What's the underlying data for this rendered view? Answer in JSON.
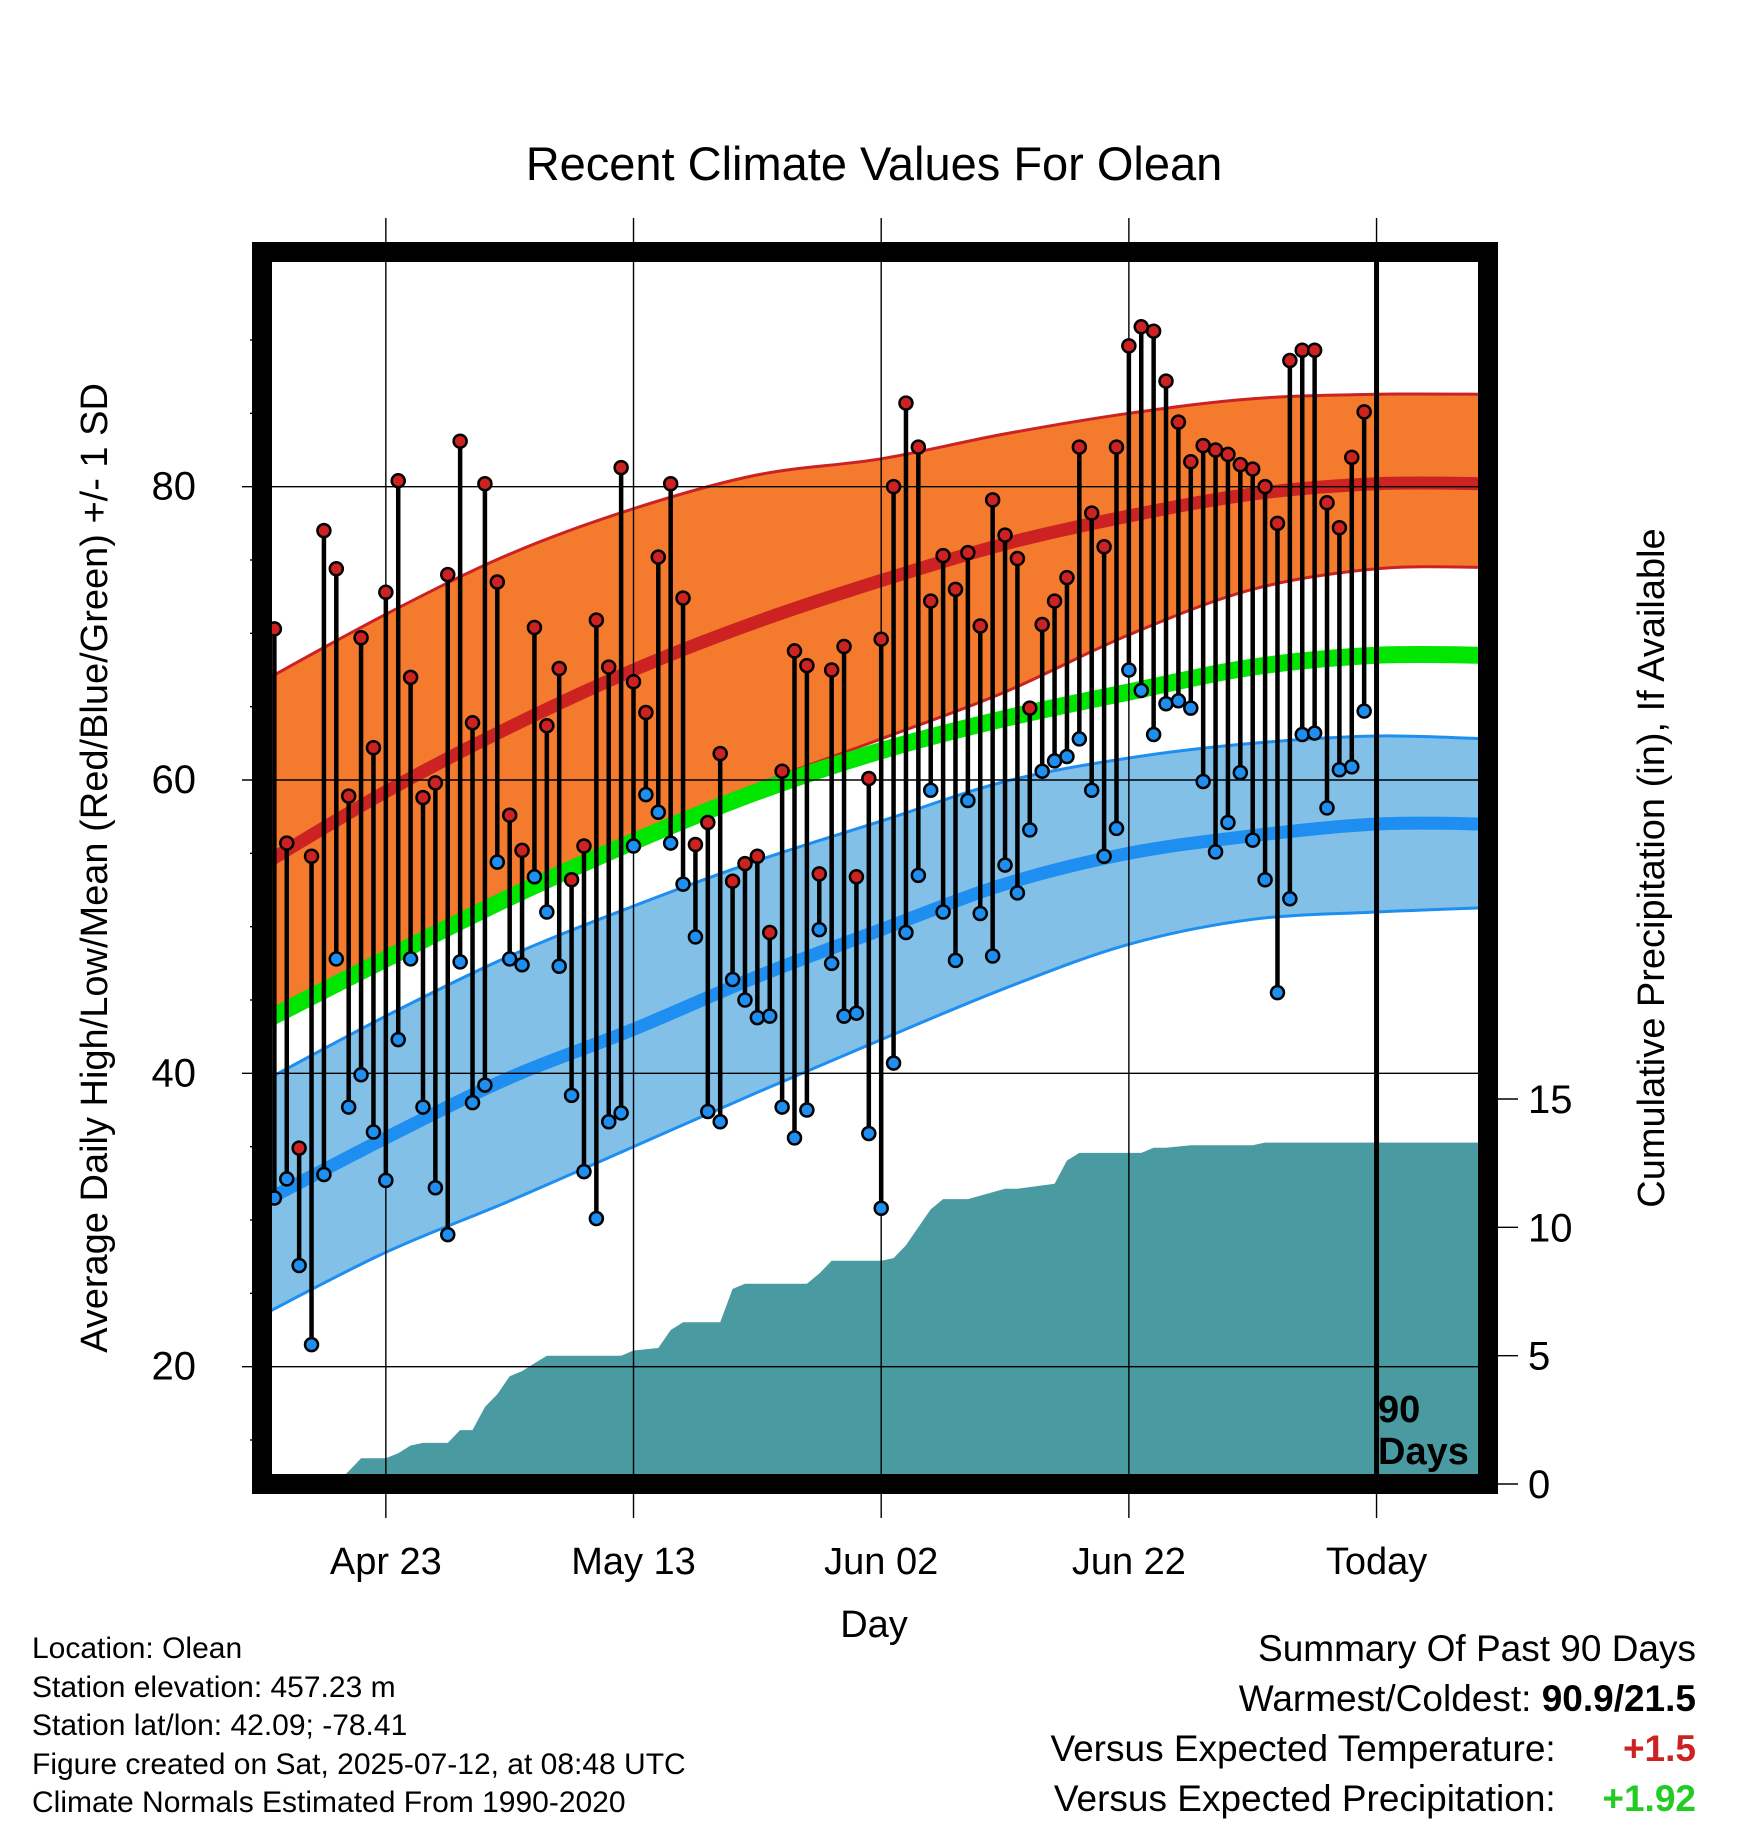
{
  "chart_data": {
    "type": "line",
    "title": "Recent Climate Values For Olean",
    "xlabel": "Day",
    "ylabel": "Average Daily High/Low/Mean (Red/Blue/Green) +/- 1 SD",
    "y2label": "Cumulative Precipitation (in), If Available",
    "x_range": [
      "2025-04-13",
      "2025-07-21"
    ],
    "ylim": [
      12,
      96
    ],
    "y2lim": [
      0,
      48
    ],
    "grid": true,
    "x_ticks": [
      {
        "date": "2025-04-23",
        "label": "Apr 23"
      },
      {
        "date": "2025-05-13",
        "label": "May 13"
      },
      {
        "date": "2025-06-02",
        "label": "Jun 02"
      },
      {
        "date": "2025-06-22",
        "label": "Jun 22"
      },
      {
        "date": "2025-07-12",
        "label": "Today"
      }
    ],
    "y_ticks": [
      20,
      40,
      60,
      80
    ],
    "y2_ticks": [
      0,
      5,
      10,
      15
    ],
    "today_marker": {
      "date": "2025-07-12",
      "label_line1": "90",
      "label_line2": "Days"
    },
    "normals": {
      "dates": [
        "2025-04-13",
        "2025-04-23",
        "2025-05-03",
        "2025-05-13",
        "2025-05-23",
        "2025-06-02",
        "2025-06-12",
        "2025-06-22",
        "2025-07-02",
        "2025-07-12",
        "2025-07-21"
      ],
      "high_mean": [
        54.2,
        59.2,
        63.6,
        67.5,
        70.8,
        73.6,
        76.1,
        78.0,
        79.5,
        80.2,
        80.2
      ],
      "high_upper": [
        66.7,
        71.3,
        75.4,
        78.5,
        80.8,
        81.9,
        83.6,
        85.0,
        86.0,
        86.3,
        86.3
      ],
      "high_lower": [
        44.0,
        48.3,
        52.5,
        56.2,
        59.7,
        62.8,
        66.0,
        69.9,
        73.0,
        74.4,
        74.5
      ],
      "mean": [
        43.5,
        47.8,
        52.0,
        55.8,
        59.2,
        62.0,
        64.2,
        66.0,
        67.7,
        68.5,
        68.5
      ],
      "low_mean": [
        31.2,
        35.6,
        39.7,
        43.0,
        46.6,
        49.8,
        52.9,
        55.0,
        56.2,
        57.0,
        57.0
      ],
      "low_upper": [
        39.4,
        43.9,
        48.0,
        51.4,
        54.5,
        57.2,
        59.9,
        61.5,
        62.5,
        63.0,
        62.8
      ],
      "low_lower": [
        23.5,
        27.8,
        31.3,
        35.0,
        38.7,
        42.3,
        45.8,
        48.8,
        50.5,
        51.0,
        51.3
      ],
      "colors": {
        "high_band": "#f47a2e",
        "high_line": "#cc2222",
        "low_band": "#82c0e8",
        "low_line": "#1e8ff0",
        "mean_line": "#00e600"
      }
    },
    "observed": {
      "dates": [
        "2025-04-13",
        "2025-04-14",
        "2025-04-15",
        "2025-04-16",
        "2025-04-17",
        "2025-04-18",
        "2025-04-19",
        "2025-04-20",
        "2025-04-21",
        "2025-04-22",
        "2025-04-23",
        "2025-04-24",
        "2025-04-25",
        "2025-04-26",
        "2025-04-27",
        "2025-04-28",
        "2025-04-29",
        "2025-04-30",
        "2025-05-01",
        "2025-05-02",
        "2025-05-03",
        "2025-05-04",
        "2025-05-05",
        "2025-05-06",
        "2025-05-07",
        "2025-05-08",
        "2025-05-09",
        "2025-05-10",
        "2025-05-11",
        "2025-05-12",
        "2025-05-13",
        "2025-05-14",
        "2025-05-15",
        "2025-05-16",
        "2025-05-17",
        "2025-05-18",
        "2025-05-19",
        "2025-05-20",
        "2025-05-21",
        "2025-05-22",
        "2025-05-23",
        "2025-05-24",
        "2025-05-25",
        "2025-05-26",
        "2025-05-27",
        "2025-05-28",
        "2025-05-29",
        "2025-05-30",
        "2025-05-31",
        "2025-06-01",
        "2025-06-02",
        "2025-06-03",
        "2025-06-04",
        "2025-06-05",
        "2025-06-06",
        "2025-06-07",
        "2025-06-08",
        "2025-06-09",
        "2025-06-10",
        "2025-06-11",
        "2025-06-12",
        "2025-06-13",
        "2025-06-14",
        "2025-06-15",
        "2025-06-16",
        "2025-06-17",
        "2025-06-18",
        "2025-06-19",
        "2025-06-20",
        "2025-06-21",
        "2025-06-22",
        "2025-06-23",
        "2025-06-24",
        "2025-06-25",
        "2025-06-26",
        "2025-06-27",
        "2025-06-28",
        "2025-06-29",
        "2025-06-30",
        "2025-07-01",
        "2025-07-02",
        "2025-07-03",
        "2025-07-04",
        "2025-07-05",
        "2025-07-06",
        "2025-07-07",
        "2025-07-08",
        "2025-07-09",
        "2025-07-10",
        "2025-07-11"
      ],
      "highs": [
        57.6,
        70.3,
        55.7,
        34.9,
        54.8,
        77.0,
        74.4,
        58.9,
        69.7,
        62.2,
        72.8,
        80.4,
        67.0,
        58.8,
        59.8,
        74.0,
        83.1,
        63.9,
        80.2,
        73.5,
        57.6,
        55.2,
        70.4,
        63.7,
        67.6,
        53.2,
        55.5,
        70.9,
        67.7,
        81.3,
        66.7,
        64.6,
        75.2,
        80.2,
        72.4,
        55.6,
        57.1,
        61.8,
        53.1,
        54.3,
        54.8,
        49.6,
        60.6,
        68.8,
        67.8,
        53.6,
        67.5,
        69.1,
        53.4,
        60.1,
        69.6,
        80.0,
        85.7,
        82.7,
        72.2,
        75.3,
        73.0,
        75.5,
        70.5,
        79.1,
        76.7,
        75.1,
        64.9,
        70.6,
        72.2,
        73.8,
        82.7,
        78.2,
        75.9,
        82.7,
        89.6,
        90.9,
        90.6,
        87.2,
        84.4,
        81.7,
        82.8,
        82.5,
        82.2,
        81.5,
        81.2,
        80.0,
        77.5,
        88.6,
        89.3,
        89.3,
        78.9,
        77.2,
        82.0,
        85.1
      ],
      "lows": [
        31.7,
        31.5,
        32.8,
        26.9,
        21.5,
        33.1,
        47.8,
        37.7,
        39.9,
        36.0,
        32.7,
        42.3,
        47.8,
        37.7,
        32.2,
        29.0,
        47.6,
        38.0,
        39.2,
        54.4,
        47.8,
        47.4,
        53.4,
        51.0,
        47.3,
        38.5,
        33.3,
        30.1,
        36.7,
        37.3,
        55.5,
        59.0,
        57.8,
        55.7,
        52.9,
        49.3,
        37.4,
        36.7,
        46.4,
        45.0,
        43.8,
        43.9,
        37.7,
        35.6,
        37.5,
        49.8,
        47.5,
        43.9,
        44.1,
        35.9,
        30.8,
        40.7,
        49.6,
        53.5,
        59.3,
        51.0,
        47.7,
        58.6,
        50.9,
        48.0,
        54.2,
        52.3,
        56.6,
        60.6,
        61.3,
        61.6,
        62.8,
        59.3,
        54.8,
        56.7,
        67.5,
        66.1,
        63.1,
        65.2,
        65.4,
        64.9,
        59.9,
        55.1,
        57.1,
        60.5,
        55.9,
        53.2,
        45.5,
        51.9,
        63.1,
        63.2,
        58.1,
        60.7,
        60.9,
        64.7
      ],
      "colors": {
        "high_dot": "#cc2222",
        "low_dot": "#1e8ff0",
        "stem": "#000000"
      }
    },
    "precipitation": {
      "dates": [
        "2025-04-13",
        "2025-04-19",
        "2025-04-20",
        "2025-04-21",
        "2025-04-22",
        "2025-04-23",
        "2025-04-24",
        "2025-04-25",
        "2025-04-26",
        "2025-04-27",
        "2025-04-28",
        "2025-04-29",
        "2025-04-30",
        "2025-05-01",
        "2025-05-02",
        "2025-05-03",
        "2025-05-04",
        "2025-05-05",
        "2025-05-06",
        "2025-05-12",
        "2025-05-13",
        "2025-05-15",
        "2025-05-16",
        "2025-05-17",
        "2025-05-19",
        "2025-05-20",
        "2025-05-21",
        "2025-05-22",
        "2025-05-27",
        "2025-05-28",
        "2025-05-29",
        "2025-06-02",
        "2025-06-03",
        "2025-06-04",
        "2025-06-05",
        "2025-06-06",
        "2025-06-07",
        "2025-06-08",
        "2025-06-09",
        "2025-06-12",
        "2025-06-13",
        "2025-06-16",
        "2025-06-17",
        "2025-06-18",
        "2025-06-19",
        "2025-06-22",
        "2025-06-23",
        "2025-06-24",
        "2025-06-25",
        "2025-06-27",
        "2025-07-02",
        "2025-07-03",
        "2025-07-11",
        "2025-07-21"
      ],
      "cumulative": [
        0.0,
        0.05,
        0.5,
        1.0,
        1.0,
        1.0,
        1.2,
        1.5,
        1.6,
        1.6,
        1.6,
        2.1,
        2.1,
        3.0,
        3.5,
        4.2,
        4.4,
        4.7,
        5.0,
        5.0,
        5.2,
        5.3,
        6.0,
        6.3,
        6.3,
        6.3,
        7.6,
        7.8,
        7.8,
        8.2,
        8.7,
        8.7,
        8.8,
        9.3,
        10.0,
        10.7,
        11.1,
        11.1,
        11.1,
        11.5,
        11.5,
        11.7,
        12.6,
        12.9,
        12.9,
        12.9,
        12.9,
        13.1,
        13.1,
        13.2,
        13.2,
        13.3,
        13.3,
        13.3
      ],
      "color": "#4a9aa2"
    }
  },
  "info": {
    "location": "Location: Olean",
    "elevation": "Station elevation: 457.23 m",
    "latlon": "Station lat/lon: 42.09; -78.41",
    "created": "Figure created on Sat, 2025-07-12, at 08:48 UTC",
    "normals": "Climate Normals Estimated From 1990-2020"
  },
  "summary": {
    "title": "Summary Of Past 90 Days",
    "warmest_label": "Warmest/Coldest:",
    "warmest_value": "90.9/21.5",
    "temp_label": "Versus Expected Temperature:",
    "temp_value": "+1.5",
    "temp_color": "#cc2222",
    "precip_label": "Versus Expected Precipitation:",
    "precip_value": "+1.92",
    "precip_color": "#22cc22"
  }
}
